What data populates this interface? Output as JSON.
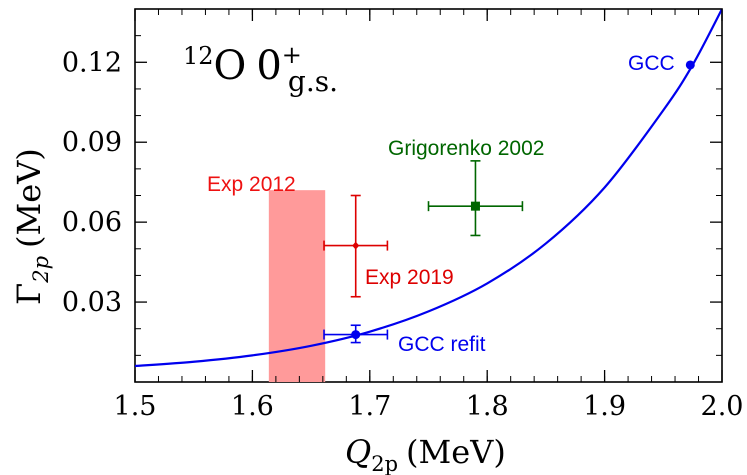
{
  "chart_data": {
    "type": "scatter",
    "title": "",
    "panel_label": {
      "mass_number": "12",
      "element": "O",
      "state": "0",
      "parity": "+",
      "subscript": "g.s."
    },
    "xlabel": {
      "symbol": "Q",
      "subscript": "2p",
      "unit": "(MeV)"
    },
    "ylabel": {
      "symbol": "Γ",
      "subscript": "2p",
      "unit": "(MeV)"
    },
    "xlim": [
      1.5,
      2.0
    ],
    "ylim": [
      0.0,
      0.14
    ],
    "x_ticks": [
      1.5,
      1.6,
      1.7,
      1.8,
      1.9,
      2.0
    ],
    "x_tick_labels": [
      "1.5",
      "1.6",
      "1.7",
      "1.8",
      "1.9",
      "2.0"
    ],
    "y_ticks": [
      0.03,
      0.06,
      0.09,
      0.12
    ],
    "y_tick_labels": [
      "0.03",
      "0.06",
      "0.09",
      "0.12"
    ],
    "grid": false,
    "curve": {
      "color": "#0000ee",
      "x": [
        1.5,
        1.55,
        1.6,
        1.65,
        1.7,
        1.75,
        1.8,
        1.85,
        1.9,
        1.95,
        1.975,
        2.0
      ],
      "y": [
        0.006,
        0.0076,
        0.01,
        0.0136,
        0.0189,
        0.0265,
        0.037,
        0.052,
        0.073,
        0.102,
        0.119,
        0.14
      ]
    },
    "band": {
      "label": "Exp 2012",
      "color": "#ff9a9a",
      "label_color": "#ee1111",
      "x_range": [
        1.614,
        1.662
      ],
      "y_range": [
        0.0,
        0.072
      ]
    },
    "points": [
      {
        "label": "GCC",
        "color": "#0000ee",
        "marker": "circle",
        "x": 1.973,
        "y": 0.119
      },
      {
        "label": "GCC refit",
        "color": "#0000ee",
        "marker": "circle",
        "x": 1.688,
        "y": 0.0178,
        "xerr": [
          1.661,
          1.715
        ],
        "yerr": [
          0.0148,
          0.0213
        ]
      },
      {
        "label": "Exp 2019",
        "color": "#dd0000",
        "marker": "diamond",
        "x": 1.688,
        "y": 0.0512,
        "xerr": [
          1.661,
          1.715
        ],
        "yerr": [
          0.032,
          0.07
        ]
      },
      {
        "label": "Grigorenko 2002",
        "color": "#006600",
        "marker": "square",
        "x": 1.79,
        "y": 0.066,
        "xerr": [
          1.75,
          1.83
        ],
        "yerr": [
          0.055,
          0.083
        ]
      }
    ]
  }
}
